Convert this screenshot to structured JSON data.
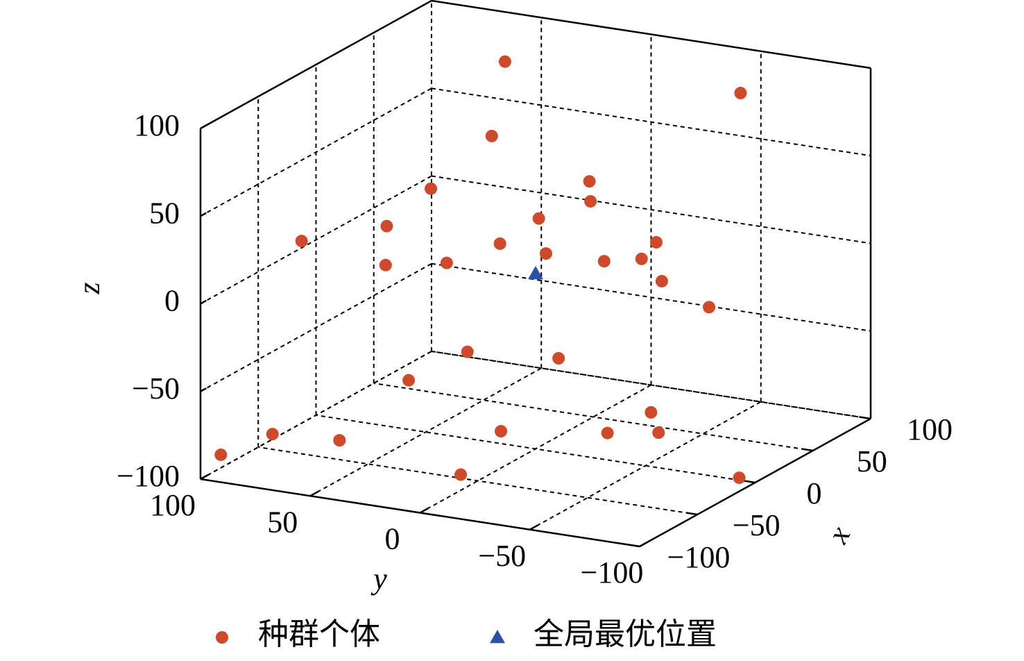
{
  "chart_data": {
    "type": "scatter3d",
    "xlabel": "x",
    "ylabel": "y",
    "zlabel": "z",
    "xlim": [
      -100,
      100
    ],
    "ylim": [
      -100,
      100
    ],
    "zlim": [
      -100,
      100
    ],
    "xticks": [
      {
        "value": -100,
        "label": "−100"
      },
      {
        "value": -50,
        "label": "−50"
      },
      0,
      50,
      100
    ],
    "yticks": [
      {
        "value": -100,
        "label": "−100"
      },
      {
        "value": -50,
        "label": "−50"
      },
      0,
      50,
      100
    ],
    "zticks": [
      {
        "value": -100,
        "label": "−100"
      },
      {
        "value": -50,
        "label": "−50"
      },
      0,
      50,
      100
    ],
    "grid": true,
    "legend": "bottom",
    "series": [
      {
        "name": "种群个体",
        "color": "#cf4a2a",
        "marker": "circle",
        "x": [
          80,
          90,
          40,
          20,
          50,
          0,
          -20,
          -30,
          -60,
          30,
          -40,
          -10,
          -50,
          20,
          -30,
          10,
          -20,
          0,
          -40,
          -20,
          -30,
          60,
          -70,
          -50,
          -30,
          -10,
          0,
          -90,
          -80,
          -10
        ],
        "y": [
          56,
          -46,
          41,
          -14,
          74,
          -25,
          -12,
          52,
          75,
          32,
          -76,
          -10,
          42,
          51,
          -47,
          -43,
          -68,
          -79,
          10,
          -21,
          42,
          -21,
          83,
          63,
          0,
          -38,
          -56,
          96,
          -8,
          -98
        ],
        "z": [
          81,
          79,
          56,
          48,
          16,
          46,
          41,
          28,
          26,
          0,
          47,
          17,
          15,
          -11,
          27,
          13,
          16,
          -4,
          -32,
          -37,
          -58,
          -97,
          -82,
          -89,
          -79,
          -80,
          -80,
          -89,
          -84,
          -94
        ]
      },
      {
        "name": "全局最优位置",
        "color": "#2a50a8",
        "marker": "triangle",
        "x": [
          0
        ],
        "y": [
          0
        ],
        "z": [
          0
        ]
      }
    ]
  }
}
